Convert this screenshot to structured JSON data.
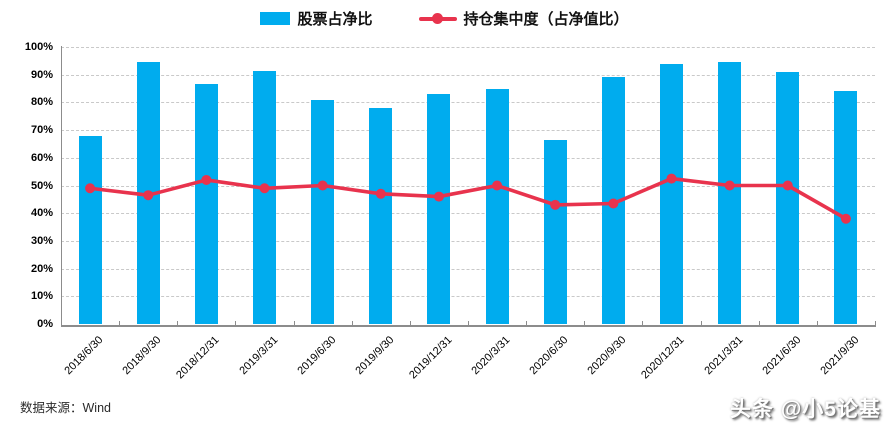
{
  "legend": {
    "items": [
      {
        "label": "股票占净比",
        "marker": "bar-swatch"
      },
      {
        "label": "持仓集中度（占净值比）",
        "marker": "line-dot"
      }
    ]
  },
  "footer": {
    "source_note": "数据来源：Wind",
    "watermark": "头条 @小5论基"
  },
  "colors": {
    "bar": "#00ACEE",
    "line": "#E8334D",
    "grid": "#C9C9C9",
    "axis": "#8C8C8C",
    "text": "#000000"
  },
  "chart_data": {
    "type": "bar",
    "note": "combo chart: bar series + line series, both on one percent axis",
    "categories": [
      "2018/6/30",
      "2018/9/30",
      "2018/12/31",
      "2019/3/31",
      "2019/6/30",
      "2019/9/30",
      "2019/12/31",
      "2020/3/31",
      "2020/6/30",
      "2020/9/30",
      "2020/12/31",
      "2021/3/31",
      "2021/6/30",
      "2021/9/30"
    ],
    "series": [
      {
        "name": "股票占净比",
        "type": "bar",
        "values": [
          68,
          94.5,
          86.5,
          91.5,
          81,
          78,
          83,
          85,
          66.5,
          89,
          94,
          94.5,
          91,
          84
        ]
      },
      {
        "name": "持仓集中度（占净值比）",
        "type": "line",
        "values": [
          49,
          46.5,
          52,
          49,
          50,
          47,
          46,
          50,
          43,
          43.5,
          52.5,
          50,
          50,
          38
        ]
      }
    ],
    "title": "",
    "xlabel": "",
    "ylabel": "",
    "ylim": [
      0,
      100
    ],
    "ytick_step": 10,
    "yticks": [
      "0%",
      "10%",
      "20%",
      "30%",
      "40%",
      "50%",
      "60%",
      "70%",
      "80%",
      "90%",
      "100%"
    ],
    "grid": "horizontal-dashed",
    "legend_position": "top-center"
  }
}
